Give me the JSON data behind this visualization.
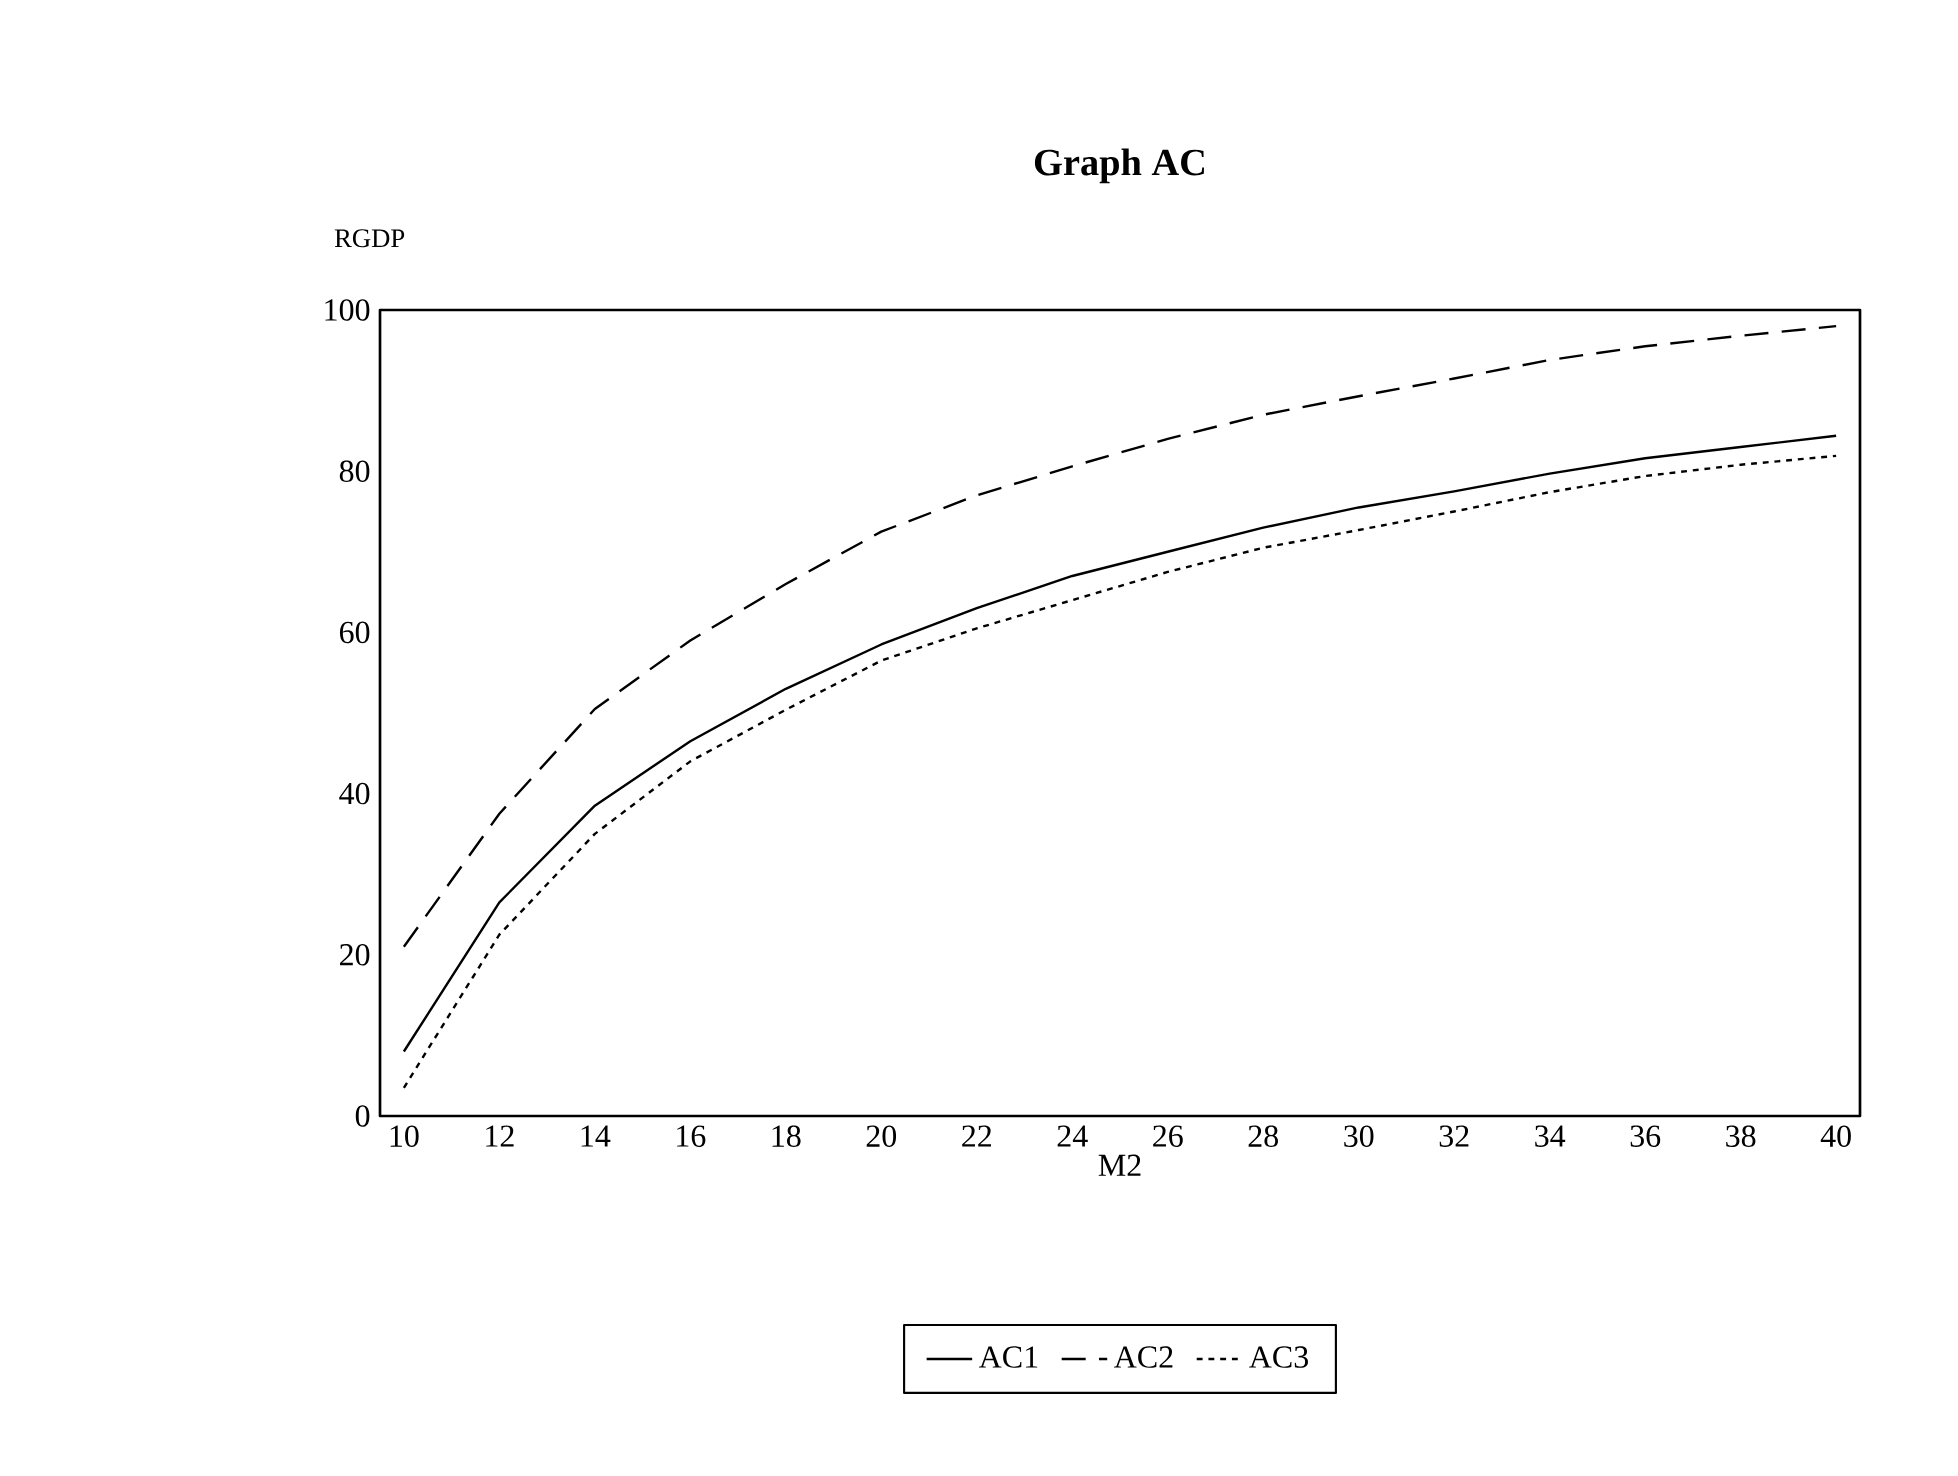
{
  "chart_data": {
    "type": "line",
    "title": "Graph AC",
    "xlabel": "M2",
    "ylabel": "RGDP",
    "x": [
      10,
      12,
      14,
      16,
      18,
      20,
      22,
      24,
      26,
      28,
      30,
      32,
      34,
      36,
      38,
      40
    ],
    "xlim": [
      9.5,
      40.5
    ],
    "xticks": [
      10,
      12,
      14,
      16,
      18,
      20,
      22,
      24,
      26,
      28,
      30,
      32,
      34,
      36,
      38,
      40
    ],
    "ylim": [
      0,
      100
    ],
    "yticks": [
      0,
      20,
      40,
      60,
      80,
      100
    ],
    "grid": false,
    "legend": "bottom",
    "marker": "none",
    "series": [
      {
        "name": "AC1",
        "color": "#000000",
        "line_style": "solid",
        "values": [
          8,
          26.5,
          38.5,
          46.5,
          53,
          58.5,
          63,
          67,
          70,
          73,
          75.5,
          77.5,
          79.7,
          81.6,
          83,
          84.4
        ]
      },
      {
        "name": "AC2",
        "color": "#000000",
        "line_style": "dashed",
        "values": [
          21,
          37.5,
          50.5,
          59,
          66,
          72.5,
          77,
          80.6,
          84,
          87,
          89.3,
          91.5,
          93.8,
          95.5,
          96.8,
          98
        ]
      },
      {
        "name": "AC3",
        "color": "#000000",
        "line_style": "dotted",
        "values": [
          3.5,
          22.5,
          35,
          44,
          50.4,
          56.5,
          60.5,
          64,
          67.5,
          70.5,
          72.7,
          75,
          77.4,
          79.4,
          80.8,
          81.9
        ]
      }
    ]
  }
}
